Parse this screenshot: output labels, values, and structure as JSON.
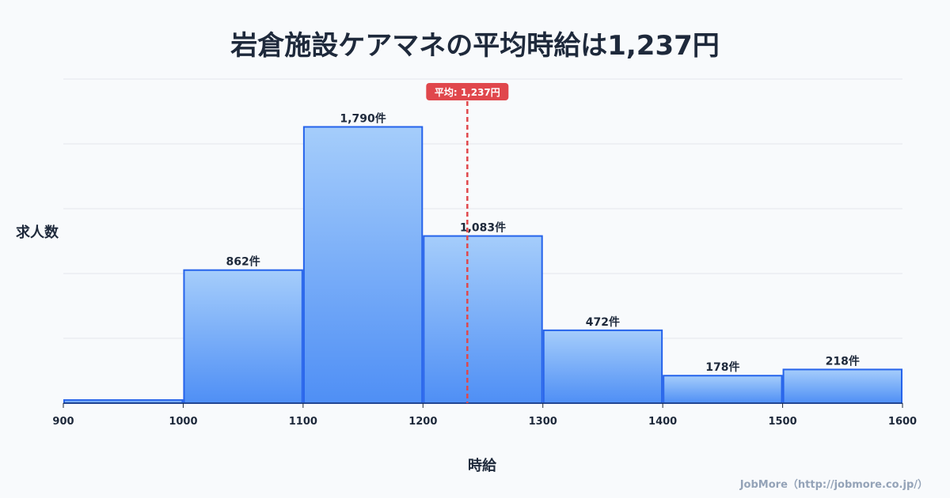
{
  "chart_data": {
    "type": "bar",
    "title": "岩倉施設ケアマネの平均時給は1,237円",
    "xlabel": "時給",
    "ylabel": "求人数",
    "bin_edges": [
      900,
      1000,
      1100,
      1200,
      1300,
      1400,
      1500,
      1600
    ],
    "x_ticks": [
      "900",
      "1000",
      "1100",
      "1200",
      "1300",
      "1400",
      "1500",
      "1600"
    ],
    "values": [
      20,
      862,
      1790,
      1083,
      472,
      178,
      218
    ],
    "data_labels": [
      "",
      "862件",
      "1,790件",
      "1,083件",
      "472件",
      "178件",
      "218件"
    ],
    "ylim": [
      0,
      2100
    ],
    "grid": true,
    "mean": 1237,
    "mean_label": "平均: 1,237円",
    "colors": {
      "bar_top": "#a5cdfb",
      "bar_bottom": "#4f8ff5",
      "bar_stroke": "#2563eb",
      "mean_line": "#e0474c"
    }
  },
  "credit": "JobMore（http://jobmore.co.jp/）"
}
